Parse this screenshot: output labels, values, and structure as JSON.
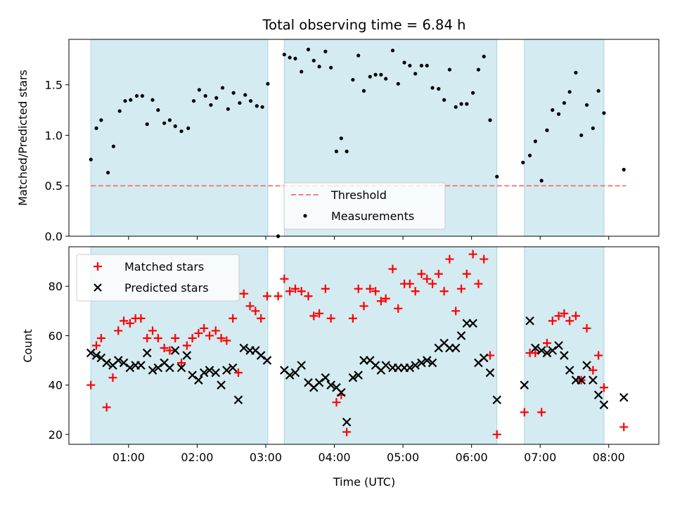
{
  "title": "Total observing time = 6.84 h",
  "xlabel": "Time (UTC)",
  "x_ticks": [
    "01:00",
    "02:00",
    "03:00",
    "04:00",
    "05:00",
    "06:00",
    "07:00",
    "08:00"
  ],
  "colors": {
    "band": "#d4ebf1",
    "band_edge": "#a9d6e2",
    "threshold": "#f08080",
    "matched": "#ff0000",
    "predicted": "#000000"
  },
  "chart_data": [
    {
      "type": "scatter",
      "ylabel": "Matched/Predicted stars",
      "xlim": [
        0.13,
        8.73
      ],
      "ylim": [
        0,
        1.95
      ],
      "y_ticks": [
        "0.0",
        "0.5",
        "1.0",
        "1.5"
      ],
      "grid": false,
      "legend_position": "bottom-center",
      "observing_windows": [
        [
          0.45,
          3.03
        ],
        [
          3.27,
          6.37
        ],
        [
          6.77,
          7.93
        ]
      ],
      "threshold": {
        "name": "Threshold",
        "y": 0.5,
        "x_range": [
          0.45,
          8.25
        ]
      },
      "series": [
        {
          "name": "Measurements",
          "x": [
            0.45,
            0.53,
            0.6,
            0.7,
            0.78,
            0.87,
            0.95,
            1.03,
            1.12,
            1.2,
            1.27,
            1.35,
            1.43,
            1.52,
            1.6,
            1.68,
            1.77,
            1.87,
            1.95,
            2.03,
            2.12,
            2.2,
            2.28,
            2.37,
            2.45,
            2.53,
            2.62,
            2.7,
            2.78,
            2.87,
            2.95,
            3.03,
            3.18,
            3.27,
            3.35,
            3.43,
            3.52,
            3.62,
            3.7,
            3.78,
            3.87,
            3.95,
            4.03,
            4.1,
            4.18,
            4.27,
            4.35,
            4.43,
            4.52,
            4.6,
            4.68,
            4.75,
            4.85,
            4.93,
            5.02,
            5.1,
            5.18,
            5.27,
            5.35,
            5.43,
            5.52,
            5.6,
            5.68,
            5.77,
            5.85,
            5.93,
            6.02,
            6.1,
            6.18,
            6.27,
            6.37,
            6.75,
            6.85,
            6.93,
            7.02,
            7.1,
            7.18,
            7.27,
            7.35,
            7.43,
            7.52,
            7.6,
            7.68,
            7.77,
            7.85,
            7.93,
            8.22
          ],
          "y": [
            0.76,
            1.07,
            1.15,
            0.63,
            0.89,
            1.24,
            1.34,
            1.35,
            1.39,
            1.39,
            1.11,
            1.35,
            1.25,
            1.12,
            1.15,
            1.09,
            1.04,
            1.07,
            1.34,
            1.45,
            1.39,
            1.3,
            1.37,
            1.47,
            1.26,
            1.42,
            1.32,
            1.4,
            1.34,
            1.29,
            1.28,
            1.51,
            0.0,
            1.8,
            1.77,
            1.76,
            1.63,
            1.85,
            1.74,
            1.68,
            1.83,
            1.67,
            0.84,
            0.97,
            0.84,
            1.55,
            1.79,
            1.44,
            1.58,
            1.6,
            1.6,
            1.56,
            1.84,
            1.51,
            1.72,
            1.69,
            1.61,
            1.69,
            1.69,
            1.47,
            1.46,
            1.35,
            1.65,
            1.28,
            1.31,
            1.31,
            1.42,
            1.65,
            1.78,
            1.15,
            0.59,
            0.73,
            0.8,
            0.94,
            0.55,
            1.05,
            1.25,
            1.21,
            1.32,
            1.43,
            1.62,
            1.0,
            1.3,
            1.07,
            1.44,
            1.22,
            0.66
          ]
        }
      ]
    },
    {
      "type": "scatter",
      "ylabel": "Count",
      "xlim": [
        0.13,
        8.73
      ],
      "ylim": [
        16,
        96
      ],
      "y_ticks": [
        "20",
        "40",
        "60",
        "80"
      ],
      "grid": false,
      "legend_position": "top-left",
      "observing_windows": [
        [
          0.45,
          3.03
        ],
        [
          3.27,
          6.37
        ],
        [
          6.77,
          7.93
        ]
      ],
      "series": [
        {
          "name": "Matched stars",
          "x": [
            0.45,
            0.53,
            0.6,
            0.68,
            0.77,
            0.85,
            0.93,
            1.02,
            1.1,
            1.18,
            1.27,
            1.35,
            1.43,
            1.52,
            1.6,
            1.68,
            1.77,
            1.85,
            1.93,
            2.02,
            2.1,
            2.18,
            2.27,
            2.35,
            2.43,
            2.52,
            2.6,
            2.68,
            2.77,
            2.85,
            2.93,
            3.02,
            3.18,
            3.27,
            3.35,
            3.43,
            3.52,
            3.62,
            3.7,
            3.78,
            3.87,
            3.95,
            4.03,
            4.1,
            4.18,
            4.27,
            4.35,
            4.43,
            4.52,
            4.6,
            4.68,
            4.75,
            4.85,
            4.93,
            5.02,
            5.1,
            5.18,
            5.27,
            5.35,
            5.43,
            5.52,
            5.6,
            5.68,
            5.77,
            5.85,
            5.93,
            6.02,
            6.1,
            6.18,
            6.27,
            6.37,
            6.77,
            6.85,
            6.93,
            7.02,
            7.1,
            7.18,
            7.27,
            7.35,
            7.43,
            7.52,
            7.6,
            7.68,
            7.77,
            7.85,
            7.93,
            8.22
          ],
          "y": [
            40,
            56,
            59,
            31,
            43,
            62,
            66,
            65,
            67,
            67,
            59,
            62,
            59,
            55,
            54,
            59,
            49,
            56,
            59,
            61,
            63,
            60,
            62,
            59,
            58,
            67,
            45,
            77,
            72,
            70,
            67,
            76,
            76,
            83,
            78,
            79,
            78,
            76,
            68,
            69,
            79,
            67,
            33,
            36,
            21,
            67,
            79,
            72,
            79,
            78,
            74,
            75,
            87,
            71,
            81,
            81,
            78,
            85,
            83,
            81,
            85,
            78,
            91,
            70,
            79,
            85,
            93,
            81,
            91,
            52,
            20,
            29,
            53,
            53,
            29,
            57,
            66,
            68,
            69,
            66,
            68,
            42,
            63,
            46,
            52,
            39,
            23
          ]
        },
        {
          "name": "Predicted stars",
          "x": [
            0.45,
            0.53,
            0.6,
            0.68,
            0.77,
            0.85,
            0.93,
            1.02,
            1.1,
            1.18,
            1.27,
            1.35,
            1.43,
            1.52,
            1.6,
            1.68,
            1.77,
            1.85,
            1.93,
            2.02,
            2.1,
            2.18,
            2.27,
            2.35,
            2.43,
            2.52,
            2.6,
            2.68,
            2.77,
            2.85,
            2.93,
            3.02,
            3.27,
            3.35,
            3.43,
            3.52,
            3.62,
            3.7,
            3.78,
            3.87,
            3.95,
            4.03,
            4.1,
            4.18,
            4.27,
            4.35,
            4.43,
            4.52,
            4.6,
            4.68,
            4.75,
            4.85,
            4.93,
            5.02,
            5.1,
            5.18,
            5.27,
            5.35,
            5.43,
            5.52,
            5.6,
            5.68,
            5.77,
            5.85,
            5.93,
            6.02,
            6.1,
            6.18,
            6.27,
            6.37,
            6.77,
            6.85,
            6.93,
            7.02,
            7.1,
            7.18,
            7.27,
            7.35,
            7.43,
            7.52,
            7.6,
            7.68,
            7.77,
            7.85,
            7.93,
            8.22
          ],
          "y": [
            53,
            52,
            51,
            49,
            48,
            50,
            49,
            47,
            48,
            48,
            53,
            46,
            47,
            49,
            47,
            54,
            47,
            52,
            44,
            42,
            45,
            46,
            45,
            40,
            46,
            47,
            34,
            55,
            54,
            54,
            52,
            50,
            46,
            44,
            45,
            48,
            41,
            39,
            41,
            43,
            40,
            39,
            37,
            25,
            43,
            44,
            50,
            50,
            48,
            46,
            48,
            47,
            47,
            47,
            47,
            48,
            49,
            50,
            49,
            55,
            57,
            55,
            55,
            60,
            65,
            65,
            49,
            51,
            45,
            34,
            40,
            66,
            55,
            54,
            53,
            54,
            56,
            52,
            46,
            42,
            42,
            48,
            42,
            36,
            32,
            35
          ]
        }
      ]
    }
  ]
}
